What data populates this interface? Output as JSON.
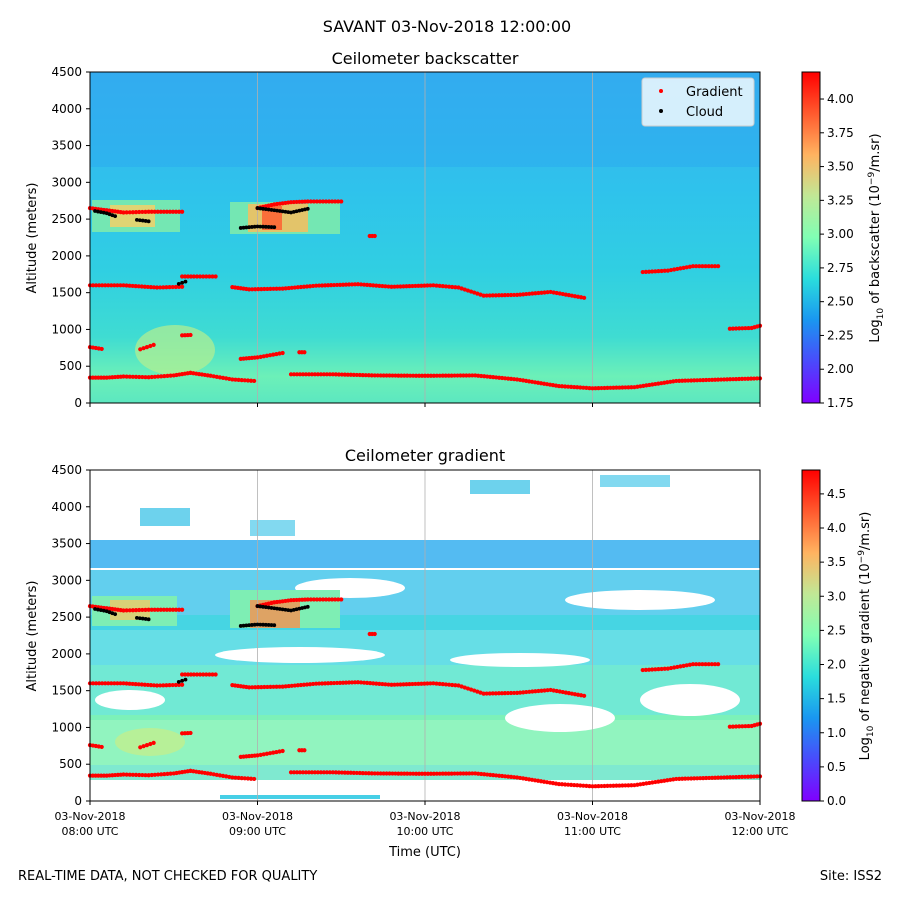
{
  "suptitle": "SAVANT 03-Nov-2018 12:00:00",
  "footer": {
    "left": "REAL-TIME DATA, NOT CHECKED FOR QUALITY",
    "right": "Site: ISS2"
  },
  "chart_data": [
    {
      "type": "heatmap",
      "title": "Ceilometer backscatter",
      "ylabel": "Altitude (meters)",
      "xlabel": "",
      "ylim": [
        0,
        4500
      ],
      "yticks": [
        "0",
        "500",
        "1000",
        "1500",
        "2000",
        "2500",
        "3000",
        "3500",
        "4000",
        "4500"
      ],
      "xlim": [
        "2018-11-03T08:00",
        "2018-11-03T12:00"
      ],
      "xticks": [],
      "grid": "vertical lines at hourly ticks",
      "colormap": "rainbow",
      "colorbar": {
        "label": "Log10 of backscatter (10^-9/m.sr)",
        "range": [
          1.75,
          4.2
        ],
        "ticks": [
          "1.75",
          "2.00",
          "2.25",
          "2.50",
          "2.75",
          "3.00",
          "3.25",
          "3.50",
          "3.75",
          "4.00"
        ]
      },
      "legend": {
        "placement": "top-right",
        "entries": [
          {
            "label": "Gradient",
            "color": "#ff0000"
          },
          {
            "label": "Cloud",
            "color": "#000000"
          }
        ]
      }
    },
    {
      "type": "heatmap",
      "title": "Ceilometer gradient",
      "ylabel": "Altitude (meters)",
      "xlabel": "Time (UTC)",
      "ylim": [
        0,
        4500
      ],
      "yticks": [
        "0",
        "500",
        "1000",
        "1500",
        "2000",
        "2500",
        "3000",
        "3500",
        "4000",
        "4500"
      ],
      "xlim": [
        "2018-11-03T08:00",
        "2018-11-03T12:00"
      ],
      "xticks": [
        [
          "03-Nov-2018",
          "08:00 UTC"
        ],
        [
          "03-Nov-2018",
          "09:00 UTC"
        ],
        [
          "03-Nov-2018",
          "10:00 UTC"
        ],
        [
          "03-Nov-2018",
          "11:00 UTC"
        ],
        [
          "03-Nov-2018",
          "12:00 UTC"
        ]
      ],
      "grid": "vertical lines at hourly ticks",
      "colormap": "rainbow",
      "colorbar": {
        "label": "Log10 of negative gradient (10^-9/m.sr)",
        "range": [
          0,
          4.85
        ],
        "ticks": [
          "0.0",
          "0.5",
          "1.0",
          "1.5",
          "2.0",
          "2.5",
          "3.0",
          "3.5",
          "4.0",
          "4.5"
        ]
      }
    }
  ],
  "overlay_series": {
    "gradient_color": "#ff0000",
    "cloud_color": "#000000",
    "gradient_segments": [
      {
        "x": [
          8.0,
          8.1,
          8.2,
          8.35,
          8.5,
          8.6
        ],
        "y": [
          345,
          345,
          360,
          350,
          375,
          410
        ]
      },
      {
        "x": [
          8.6,
          8.72,
          8.85,
          8.98
        ],
        "y": [
          410,
          370,
          320,
          300
        ]
      },
      {
        "x": [
          9.2,
          9.45,
          9.7,
          10.0,
          10.3,
          10.55,
          10.8,
          11.0,
          11.25,
          11.5,
          12.0
        ],
        "y": [
          390,
          390,
          375,
          370,
          375,
          320,
          230,
          200,
          215,
          300,
          335
        ]
      },
      {
        "x": [
          8.0,
          8.2,
          8.4,
          8.55
        ],
        "y": [
          1600,
          1600,
          1570,
          1580
        ]
      },
      {
        "x": [
          8.55,
          8.62,
          8.75
        ],
        "y": [
          1720,
          1720,
          1720
        ]
      },
      {
        "x": [
          8.85,
          8.95,
          9.15,
          9.35,
          9.6,
          9.8,
          10.05,
          10.2,
          10.35,
          10.55,
          10.75,
          10.95
        ],
        "y": [
          1575,
          1545,
          1555,
          1595,
          1615,
          1580,
          1600,
          1570,
          1460,
          1470,
          1510,
          1430
        ]
      },
      {
        "x": [
          11.3,
          11.45,
          11.6,
          11.75
        ],
        "y": [
          1780,
          1800,
          1860,
          1860
        ]
      },
      {
        "x": [
          11.82,
          11.95,
          12.0
        ],
        "y": [
          1010,
          1020,
          1050
        ]
      },
      {
        "x": [
          8.0,
          8.07
        ],
        "y": [
          760,
          735
        ]
      },
      {
        "x": [
          8.3,
          8.38
        ],
        "y": [
          730,
          790
        ]
      },
      {
        "x": [
          8.55,
          8.6
        ],
        "y": [
          920,
          925
        ]
      },
      {
        "x": [
          8.9,
          9.0,
          9.15
        ],
        "y": [
          600,
          620,
          680
        ]
      },
      {
        "x": [
          9.25,
          9.28
        ],
        "y": [
          690,
          690
        ]
      },
      {
        "x": [
          8.0,
          8.1,
          8.2,
          8.35,
          8.55
        ],
        "y": [
          2650,
          2620,
          2590,
          2600,
          2600
        ]
      },
      {
        "x": [
          9.0,
          9.1,
          9.2,
          9.3,
          9.5
        ],
        "y": [
          2650,
          2700,
          2730,
          2740,
          2740
        ]
      },
      {
        "x": [
          9.67,
          9.7
        ],
        "y": [
          2270,
          2270
        ]
      }
    ],
    "cloud_segments": [
      {
        "x": [
          8.03,
          8.1,
          8.15
        ],
        "y": [
          2610,
          2580,
          2540
        ]
      },
      {
        "x": [
          8.28,
          8.35
        ],
        "y": [
          2490,
          2470
        ]
      },
      {
        "x": [
          8.53,
          8.57
        ],
        "y": [
          1620,
          1650
        ]
      },
      {
        "x": [
          8.9,
          9.0,
          9.1
        ],
        "y": [
          2380,
          2400,
          2390
        ]
      },
      {
        "x": [
          9.0,
          9.1,
          9.2,
          9.3
        ],
        "y": [
          2650,
          2620,
          2590,
          2640
        ]
      }
    ]
  }
}
